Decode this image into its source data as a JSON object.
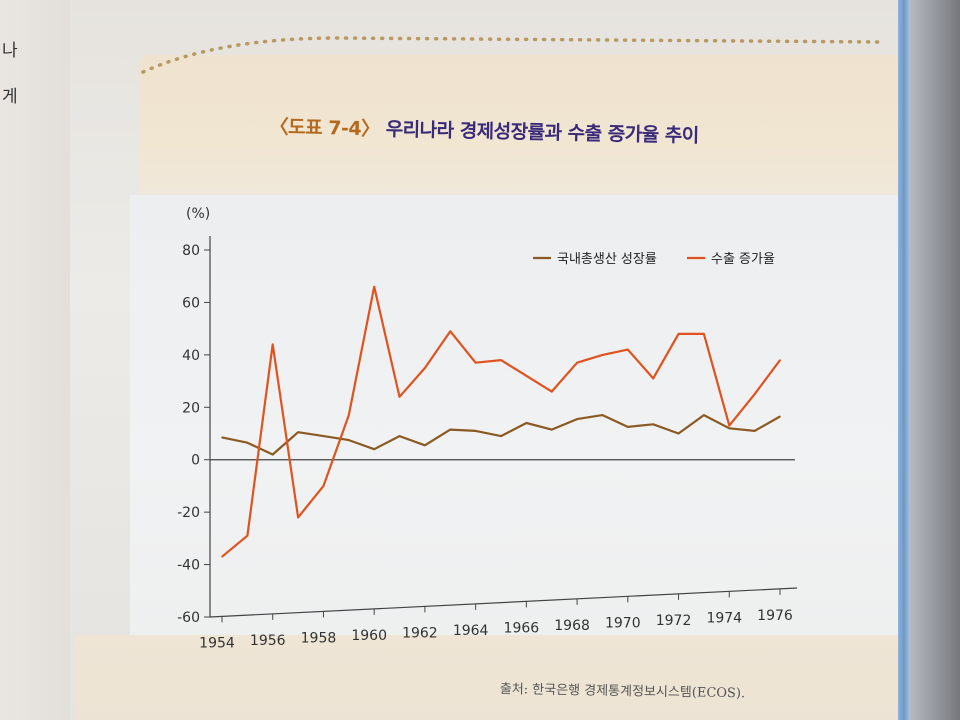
{
  "left_page": {
    "lines": [
      "나",
      "게"
    ]
  },
  "title": {
    "tag": "〈도표 7-4〉",
    "text": "우리나라 경제성장률과 수출 증가율 추이"
  },
  "source": "출처: 한국은행 경제통계정보시스템(ECOS).",
  "colors": {
    "gdp": "#8a5a22",
    "export": "#e0531e",
    "title": "#3a2a7a",
    "tag": "#b36a1e"
  },
  "chart_data": {
    "type": "line",
    "title": "〈도표 7-4〉 우리나라 경제성장률과 수출 증가율 추이",
    "ylabel": "(%)",
    "xlabel": "",
    "x": [
      1954,
      1955,
      1956,
      1957,
      1958,
      1959,
      1960,
      1961,
      1962,
      1963,
      1964,
      1965,
      1966,
      1967,
      1968,
      1969,
      1970,
      1971,
      1972,
      1973,
      1974,
      1975,
      1976
    ],
    "xticks": [
      "1954",
      "1956",
      "1958",
      "1960",
      "1962",
      "1964",
      "1966",
      "1968",
      "1970",
      "1972",
      "1974",
      "1976"
    ],
    "yticks": [
      "80",
      "60",
      "40",
      "20",
      "0",
      "-20",
      "-40",
      "-60"
    ],
    "ylim": [
      -60,
      80
    ],
    "legend": "top-right",
    "grid": false,
    "series": [
      {
        "name": "국내총생산 성장률",
        "color": "#8a5a22",
        "values": [
          8.5,
          6.5,
          2,
          10.5,
          9,
          7.5,
          4,
          9,
          5.5,
          11.5,
          11,
          9,
          14,
          11.5,
          15.5,
          17,
          12.5,
          13.5,
          10,
          17,
          12,
          11,
          16.5
        ]
      },
      {
        "name": "수출 증가율",
        "color": "#e0531e",
        "values": [
          -37,
          -29,
          44,
          -22,
          -10,
          17,
          66,
          24,
          35,
          49,
          37,
          38,
          32,
          26,
          37,
          40,
          42,
          31,
          48,
          48,
          13,
          25,
          38
        ]
      }
    ]
  }
}
